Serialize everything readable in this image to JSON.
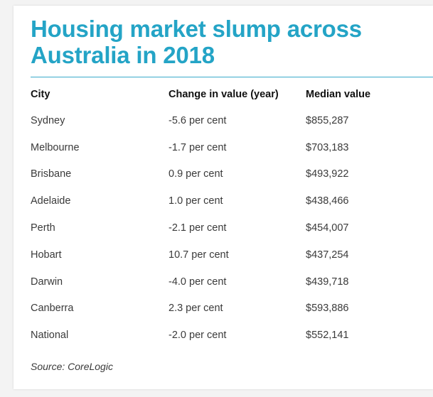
{
  "title": "Housing market slump across Australia in 2018",
  "colors": {
    "title": "#24a4c6",
    "rule": "#39aacb"
  },
  "table": {
    "headers": [
      "City",
      "Change in value (year)",
      "Median value"
    ],
    "rows": [
      [
        "Sydney",
        "-5.6 per cent",
        "$855,287"
      ],
      [
        "Melbourne",
        "-1.7 per cent",
        "$703,183"
      ],
      [
        "Brisbane",
        "0.9 per cent",
        "$493,922"
      ],
      [
        "Adelaide",
        "1.0 per cent",
        "$438,466"
      ],
      [
        "Perth",
        "-2.1 per cent",
        "$454,007"
      ],
      [
        "Hobart",
        "10.7 per cent",
        "$437,254"
      ],
      [
        "Darwin",
        "-4.0 per cent",
        "$439,718"
      ],
      [
        "Canberra",
        "2.3 per cent",
        "$593,886"
      ],
      [
        "National",
        "-2.0 per cent",
        "$552,141"
      ]
    ]
  },
  "source": "Source: CoreLogic"
}
